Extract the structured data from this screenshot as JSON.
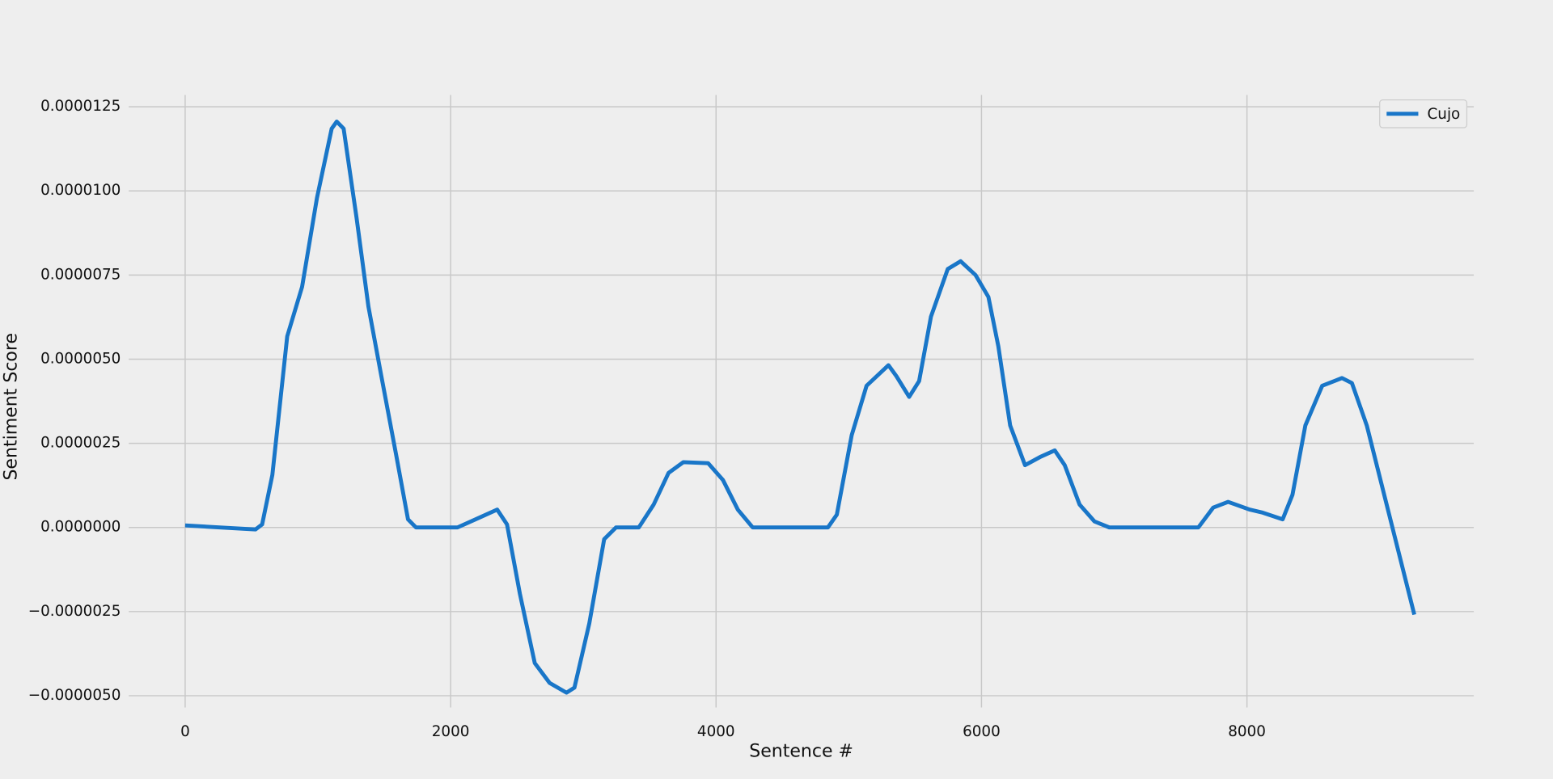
{
  "chart_data": {
    "type": "line",
    "x_label": "Sentence #",
    "y_label": "Sentiment Score",
    "xlim": [
      -425,
      9709
    ],
    "ylim": [
      -5.35e-06,
      1.285e-05
    ],
    "xticks": [
      0,
      2000,
      4000,
      6000,
      8000
    ],
    "yticks": [
      {
        "value": 1.25e-05,
        "label": "0.0000125"
      },
      {
        "value": 1e-05,
        "label": "0.0000100"
      },
      {
        "value": 7.5e-06,
        "label": "0.0000075"
      },
      {
        "value": 5e-06,
        "label": "0.0000050"
      },
      {
        "value": 2.5e-06,
        "label": "0.0000025"
      },
      {
        "value": 0,
        "label": "0.0000000"
      },
      {
        "value": -2.5e-06,
        "label": "−0.0000025"
      },
      {
        "value": -5e-06,
        "label": "−0.0000050"
      }
    ],
    "grid": true,
    "legend": "upper right",
    "x": [
      0,
      530,
      580,
      657,
      769,
      881,
      993,
      1104,
      1142,
      1194,
      1291,
      1381,
      1478,
      1590,
      1679,
      1739,
      2052,
      2187,
      2351,
      2425,
      2522,
      2634,
      2746,
      2873,
      2933,
      3045,
      3157,
      3246,
      3418,
      3530,
      3642,
      3754,
      3940,
      4052,
      4164,
      4276,
      4843,
      4910,
      5022,
      5134,
      5299,
      5358,
      5455,
      5530,
      5619,
      5746,
      5843,
      5955,
      6052,
      6127,
      6216,
      6328,
      6440,
      6552,
      6627,
      6739,
      6851,
      6963,
      7634,
      7746,
      7858,
      8022,
      8119,
      8269,
      8343,
      8440,
      8567,
      8716,
      8791,
      8903,
      9261
    ],
    "series": [
      {
        "name": "Cujo",
        "color": "#1976c8",
        "values": [
          6e-08,
          -6e-08,
          9e-08,
          1.56e-06,
          5.68e-06,
          7.15e-06,
          9.79e-06,
          1.185e-05,
          1.206e-05,
          1.185e-05,
          9.21e-06,
          6.56e-06,
          4.5e-06,
          2.15e-06,
          2.4e-07,
          0,
          0,
          2.4e-07,
          5.3e-07,
          9e-08,
          -1.97e-06,
          -4.03e-06,
          -4.62e-06,
          -4.91e-06,
          -4.76e-06,
          -2.85e-06,
          -3.5e-07,
          0,
          0,
          6.8e-07,
          1.62e-06,
          1.94e-06,
          1.91e-06,
          1.41e-06,
          5.3e-07,
          0,
          0,
          3.8e-07,
          2.74e-06,
          4.21e-06,
          4.82e-06,
          4.5e-06,
          3.88e-06,
          4.35e-06,
          6.26e-06,
          7.68e-06,
          7.91e-06,
          7.5e-06,
          6.85e-06,
          5.38e-06,
          3.03e-06,
          1.85e-06,
          2.09e-06,
          2.29e-06,
          1.85e-06,
          6.8e-07,
          1.8e-07,
          0,
          0,
          5.9e-07,
          7.6e-07,
          5.3e-07,
          4.4e-07,
          2.4e-07,
          9.7e-07,
          3.03e-06,
          4.21e-06,
          4.44e-06,
          4.29e-06,
          3.03e-06,
          -2.59e-06
        ]
      }
    ]
  }
}
